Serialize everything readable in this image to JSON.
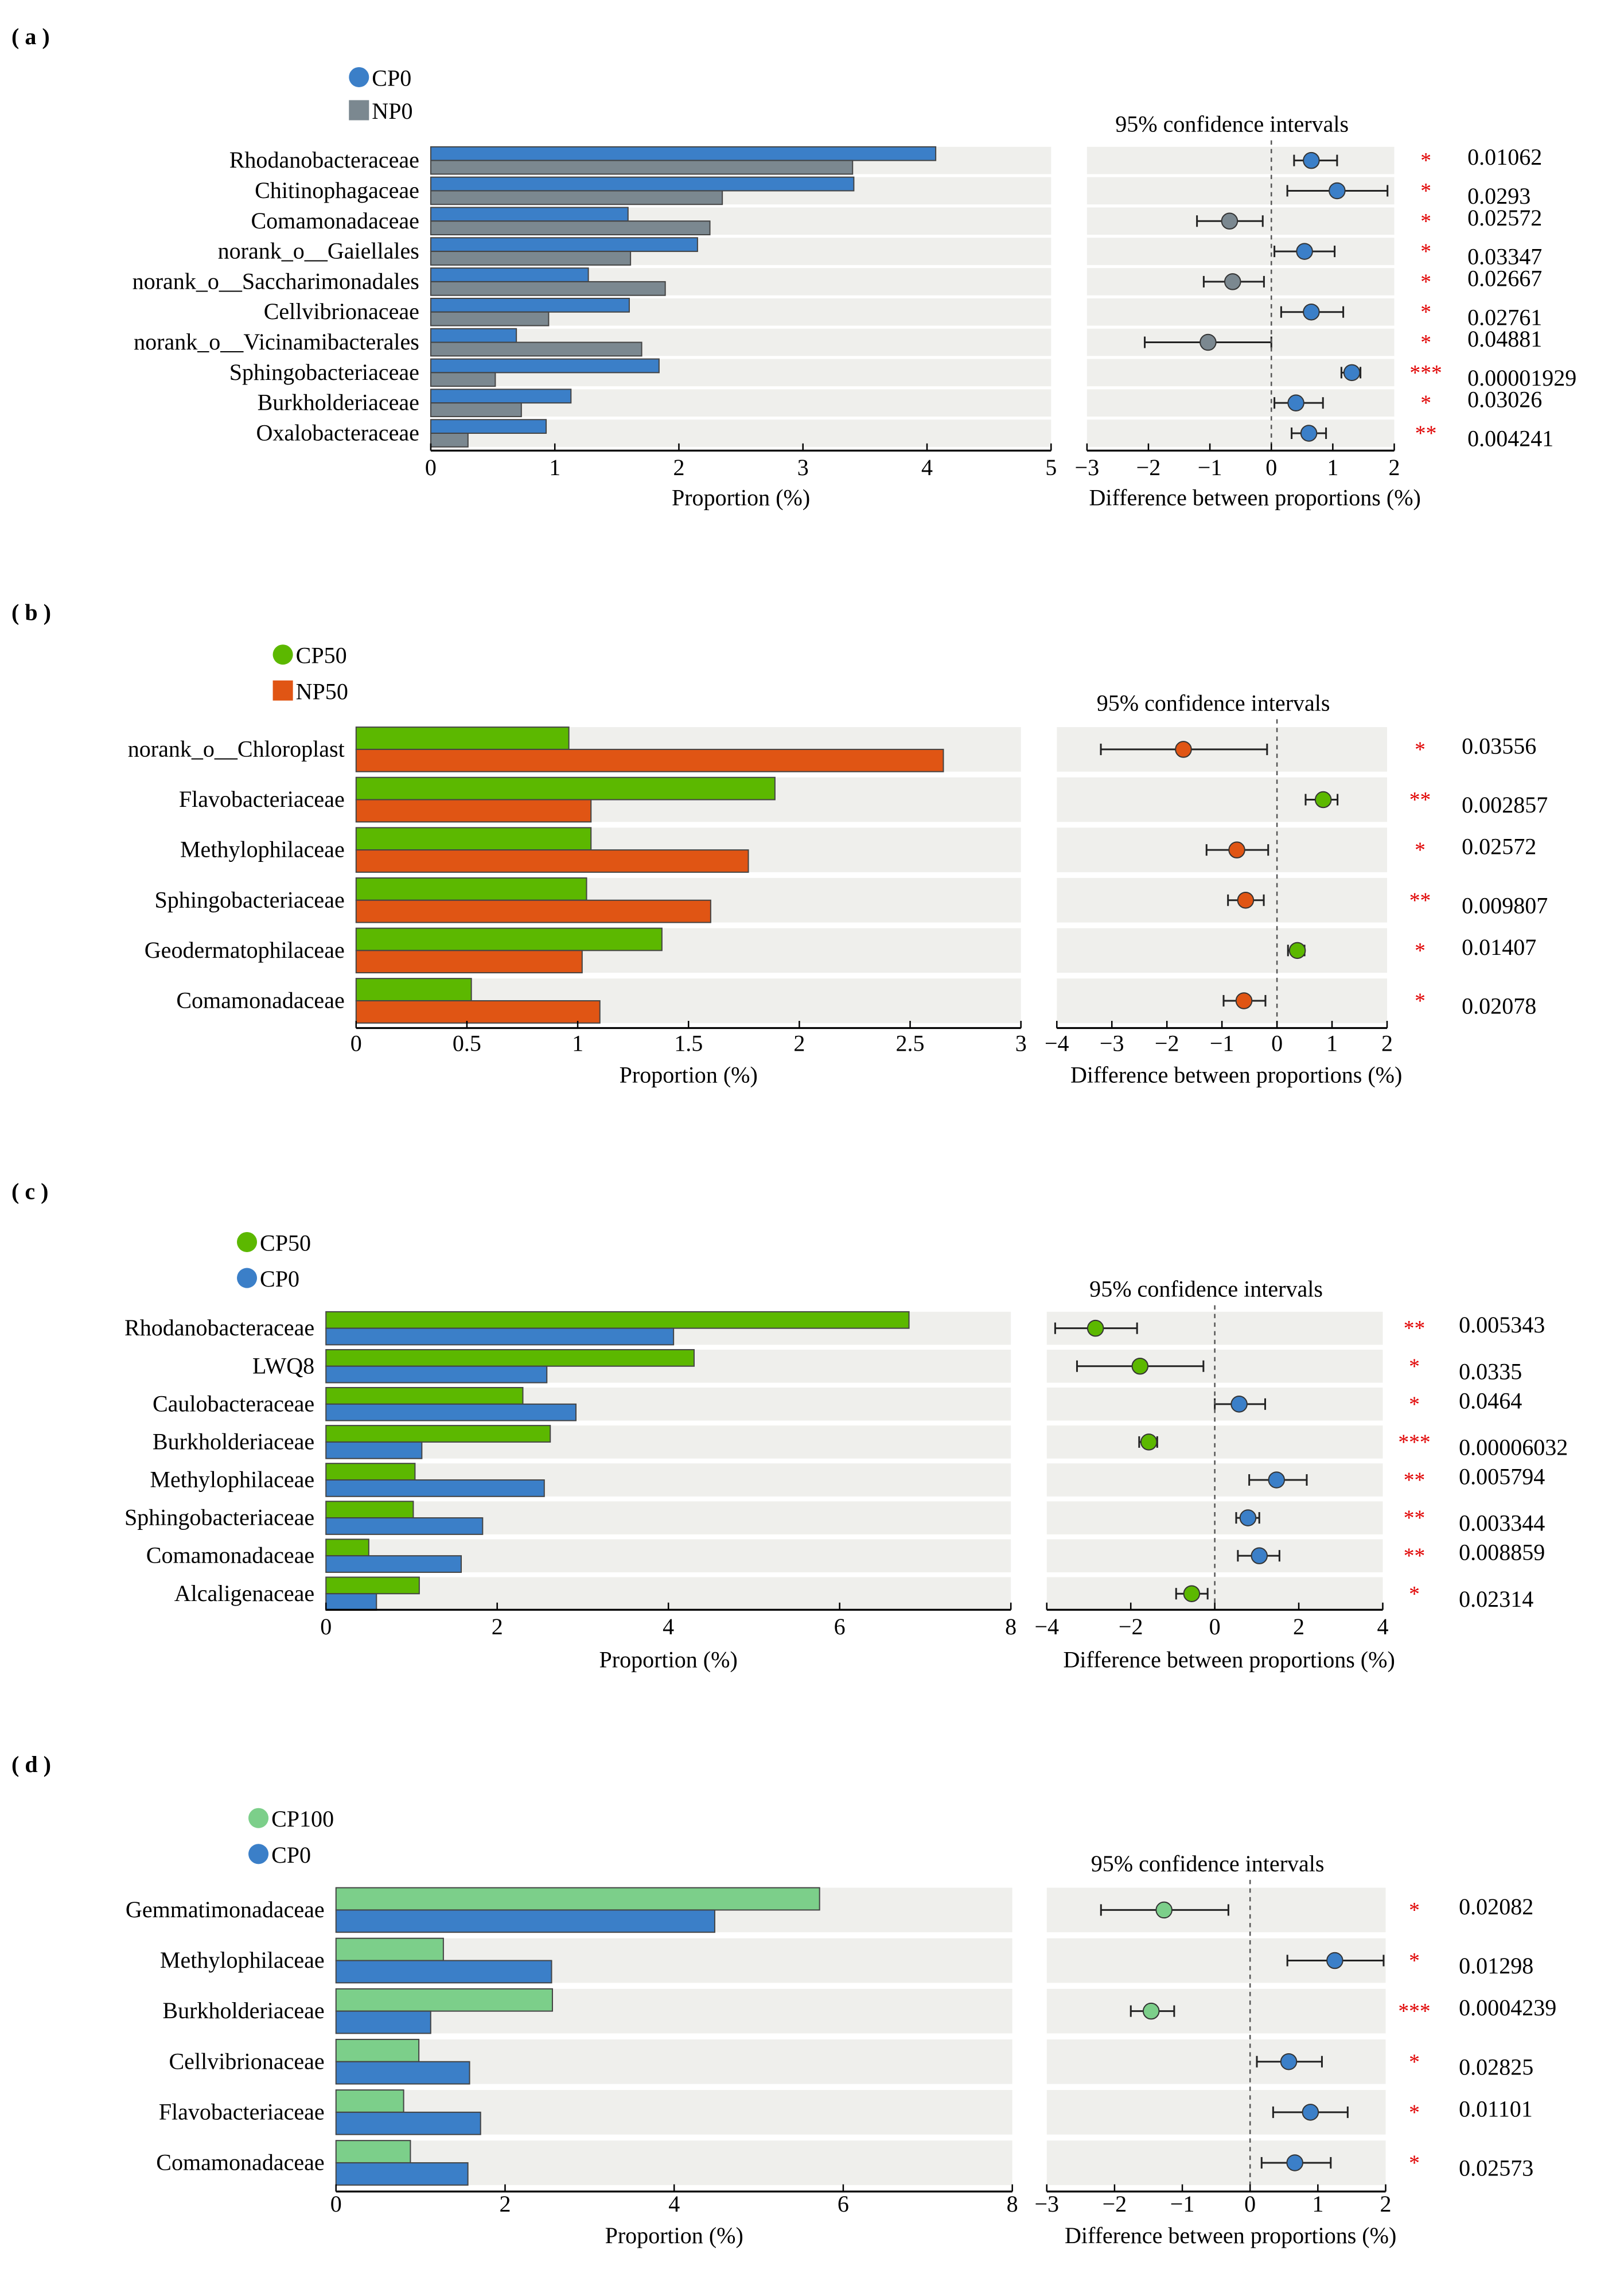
{
  "chart_data": [
    {
      "panel_label": "( a )",
      "type": "bar+errorbar",
      "groups": [
        {
          "name": "CP0",
          "color": "#3b7fc8",
          "marker": "circle"
        },
        {
          "name": "NP0",
          "color": "#7b8890",
          "marker": "square"
        }
      ],
      "xlabel": "Proportion (%)",
      "xlim": [
        0,
        5
      ],
      "xticks": [
        "0",
        "1",
        "2",
        "3",
        "4",
        "5"
      ],
      "ci_title": "95% confidence intervals",
      "diff_xlabel": "Difference between proportions (%)",
      "diff_xlim": [
        -3,
        2
      ],
      "diff_xticks": [
        "−3",
        "−2",
        "−1",
        "0",
        "1",
        "2"
      ],
      "rows": [
        {
          "name": "Rhodanobacteraceae",
          "values": [
            4.07,
            3.4
          ],
          "diff": 0.65,
          "ci": [
            0.37,
            1.07
          ],
          "stars": "*",
          "p": "0.01062"
        },
        {
          "name": "Chitinophagaceae",
          "values": [
            3.41,
            2.35
          ],
          "diff": 1.07,
          "ci": [
            0.26,
            1.89
          ],
          "stars": "*",
          "p": "0.0293"
        },
        {
          "name": "Comamonadaceae",
          "values": [
            1.59,
            2.25
          ],
          "diff": -0.68,
          "ci": [
            -1.21,
            -0.14
          ],
          "stars": "*",
          "p": "0.02572"
        },
        {
          "name": "norank_o__Gaiellales",
          "values": [
            2.15,
            1.61
          ],
          "diff": 0.54,
          "ci": [
            0.05,
            1.03
          ],
          "stars": "*",
          "p": "0.03347"
        },
        {
          "name": "norank_o__Saccharimonadales",
          "values": [
            1.27,
            1.89
          ],
          "diff": -0.63,
          "ci": [
            -1.1,
            -0.12
          ],
          "stars": "*",
          "p": "0.02667"
        },
        {
          "name": "Cellvibrionaceae",
          "values": [
            1.6,
            0.95
          ],
          "diff": 0.65,
          "ci": [
            0.16,
            1.17
          ],
          "stars": "*",
          "p": "0.02761"
        },
        {
          "name": "norank_o__Vicinamibacterales",
          "values": [
            0.69,
            1.7
          ],
          "diff": -1.03,
          "ci": [
            -2.06,
            0.0
          ],
          "stars": "*",
          "p": "0.04881"
        },
        {
          "name": "Sphingobacteriaceae",
          "values": [
            1.84,
            0.52
          ],
          "diff": 1.31,
          "ci": [
            1.14,
            1.45
          ],
          "stars": "***",
          "p": "0.00001929"
        },
        {
          "name": "Burkholderiaceae",
          "values": [
            1.13,
            0.73
          ],
          "diff": 0.4,
          "ci": [
            0.05,
            0.84
          ],
          "stars": "*",
          "p": "0.03026"
        },
        {
          "name": "Oxalobacteraceae",
          "values": [
            0.93,
            0.3
          ],
          "diff": 0.61,
          "ci": [
            0.33,
            0.89
          ],
          "stars": "**",
          "p": "0.004241"
        }
      ]
    },
    {
      "panel_label": "( b )",
      "type": "bar+errorbar",
      "groups": [
        {
          "name": "CP50",
          "color": "#5cb800",
          "marker": "circle"
        },
        {
          "name": "NP50",
          "color": "#e05514",
          "marker": "square"
        }
      ],
      "xlabel": "Proportion (%)",
      "xlim": [
        0,
        3
      ],
      "xticks": [
        "0",
        "0.5",
        "1",
        "1.5",
        "2",
        "2.5",
        "3"
      ],
      "ci_title": "95% confidence intervals",
      "diff_xlabel": "Difference between proportions (%)",
      "diff_xlim": [
        -4,
        2
      ],
      "diff_xticks": [
        "−4",
        "−3",
        "−2",
        "−1",
        "0",
        "1",
        "2"
      ],
      "rows": [
        {
          "name": "norank_o__Chloroplast",
          "values": [
            0.96,
            2.65
          ],
          "diff": -1.7,
          "ci": [
            -3.2,
            -0.18
          ],
          "stars": "*",
          "p": "0.03556"
        },
        {
          "name": "Flavobacteriaceae",
          "values": [
            1.89,
            1.06
          ],
          "diff": 0.84,
          "ci": [
            0.52,
            1.1
          ],
          "stars": "**",
          "p": "0.002857"
        },
        {
          "name": "Methylophilaceae",
          "values": [
            1.06,
            1.77
          ],
          "diff": -0.73,
          "ci": [
            -1.28,
            -0.16
          ],
          "stars": "*",
          "p": "0.02572"
        },
        {
          "name": "Sphingobacteriaceae",
          "values": [
            1.04,
            1.6
          ],
          "diff": -0.57,
          "ci": [
            -0.89,
            -0.24
          ],
          "stars": "**",
          "p": "0.009807"
        },
        {
          "name": "Geodermatophilaceae",
          "values": [
            1.38,
            1.02
          ],
          "diff": 0.37,
          "ci": [
            0.2,
            0.5
          ],
          "stars": "*",
          "p": "0.01407"
        },
        {
          "name": "Comamonadaceae",
          "values": [
            0.52,
            1.1
          ],
          "diff": -0.6,
          "ci": [
            -0.97,
            -0.21
          ],
          "stars": "*",
          "p": "0.02078"
        }
      ]
    },
    {
      "panel_label": "( c )",
      "type": "bar+errorbar",
      "groups": [
        {
          "name": "CP50",
          "color": "#5cb800",
          "marker": "circle"
        },
        {
          "name": "CP0",
          "color": "#3b7fc8",
          "marker": "circle"
        }
      ],
      "xlabel": "Proportion (%)",
      "xlim": [
        0,
        8
      ],
      "xticks": [
        "0",
        "2",
        "4",
        "6",
        "8"
      ],
      "ci_title": "95% confidence intervals",
      "diff_xlabel": "Difference between proportions (%)",
      "diff_xlim": [
        -4,
        4
      ],
      "diff_xticks": [
        "−4",
        "−2",
        "0",
        "2",
        "4"
      ],
      "rows": [
        {
          "name": "Rhodanobacteraceae",
          "values": [
            6.81,
            4.06
          ],
          "diff": -2.84,
          "ci": [
            -3.8,
            -1.85
          ],
          "stars": "**",
          "p": "0.005343"
        },
        {
          "name": "LWQ8",
          "values": [
            4.3,
            2.58
          ],
          "diff": -1.78,
          "ci": [
            -3.28,
            -0.27
          ],
          "stars": "*",
          "p": "0.0335"
        },
        {
          "name": "Caulobacteraceae",
          "values": [
            2.3,
            2.92
          ],
          "diff": 0.58,
          "ci": [
            0.0,
            1.2
          ],
          "stars": "*",
          "p": "0.0464"
        },
        {
          "name": "Burkholderiaceae",
          "values": [
            2.62,
            1.12
          ],
          "diff": -1.57,
          "ci": [
            -1.8,
            -1.37
          ],
          "stars": "***",
          "p": "0.00006032"
        },
        {
          "name": "Methylophilaceae",
          "values": [
            1.04,
            2.55
          ],
          "diff": 1.47,
          "ci": [
            0.82,
            2.19
          ],
          "stars": "**",
          "p": "0.005794"
        },
        {
          "name": "Sphingobacteriaceae",
          "values": [
            1.02,
            1.83
          ],
          "diff": 0.79,
          "ci": [
            0.51,
            1.06
          ],
          "stars": "**",
          "p": "0.003344"
        },
        {
          "name": "Comamonadaceae",
          "values": [
            0.5,
            1.58
          ],
          "diff": 1.06,
          "ci": [
            0.55,
            1.54
          ],
          "stars": "**",
          "p": "0.008859"
        },
        {
          "name": "Alcaligenaceae",
          "values": [
            1.09,
            0.59
          ],
          "diff": -0.55,
          "ci": [
            -0.92,
            -0.17
          ],
          "stars": "*",
          "p": "0.02314"
        }
      ]
    },
    {
      "panel_label": "( d )",
      "type": "bar+errorbar",
      "groups": [
        {
          "name": "CP100",
          "color": "#7ccf8a",
          "marker": "circle"
        },
        {
          "name": "CP0",
          "color": "#3b7fc8",
          "marker": "circle"
        }
      ],
      "xlabel": "Proportion (%)",
      "xlim": [
        0,
        8
      ],
      "xticks": [
        "0",
        "2",
        "4",
        "6",
        "8"
      ],
      "ci_title": "95% confidence intervals",
      "diff_xlabel": "Difference between proportions (%)",
      "diff_xlim": [
        -3,
        2
      ],
      "diff_xticks": [
        "−3",
        "−2",
        "−1",
        "0",
        "1",
        "2"
      ],
      "rows": [
        {
          "name": "Gemmatimonadaceae",
          "values": [
            5.72,
            4.48
          ],
          "diff": -1.27,
          "ci": [
            -2.2,
            -0.32
          ],
          "stars": "*",
          "p": "0.02082"
        },
        {
          "name": "Methylophilaceae",
          "values": [
            1.27,
            2.55
          ],
          "diff": 1.25,
          "ci": [
            0.55,
            1.97
          ],
          "stars": "*",
          "p": "0.01298"
        },
        {
          "name": "Burkholderiaceae",
          "values": [
            2.56,
            1.12
          ],
          "diff": -1.46,
          "ci": [
            -1.76,
            -1.12
          ],
          "stars": "***",
          "p": "0.0004239"
        },
        {
          "name": "Cellvibrionaceae",
          "values": [
            0.98,
            1.58
          ],
          "diff": 0.57,
          "ci": [
            0.1,
            1.06
          ],
          "stars": "*",
          "p": "0.02825"
        },
        {
          "name": "Flavobacteriaceae",
          "values": [
            0.8,
            1.71
          ],
          "diff": 0.89,
          "ci": [
            0.34,
            1.44
          ],
          "stars": "*",
          "p": "0.01101"
        },
        {
          "name": "Comamonadaceae",
          "values": [
            0.88,
            1.56
          ],
          "diff": 0.66,
          "ci": [
            0.17,
            1.19
          ],
          "stars": "*",
          "p": "0.02573"
        }
      ]
    }
  ]
}
